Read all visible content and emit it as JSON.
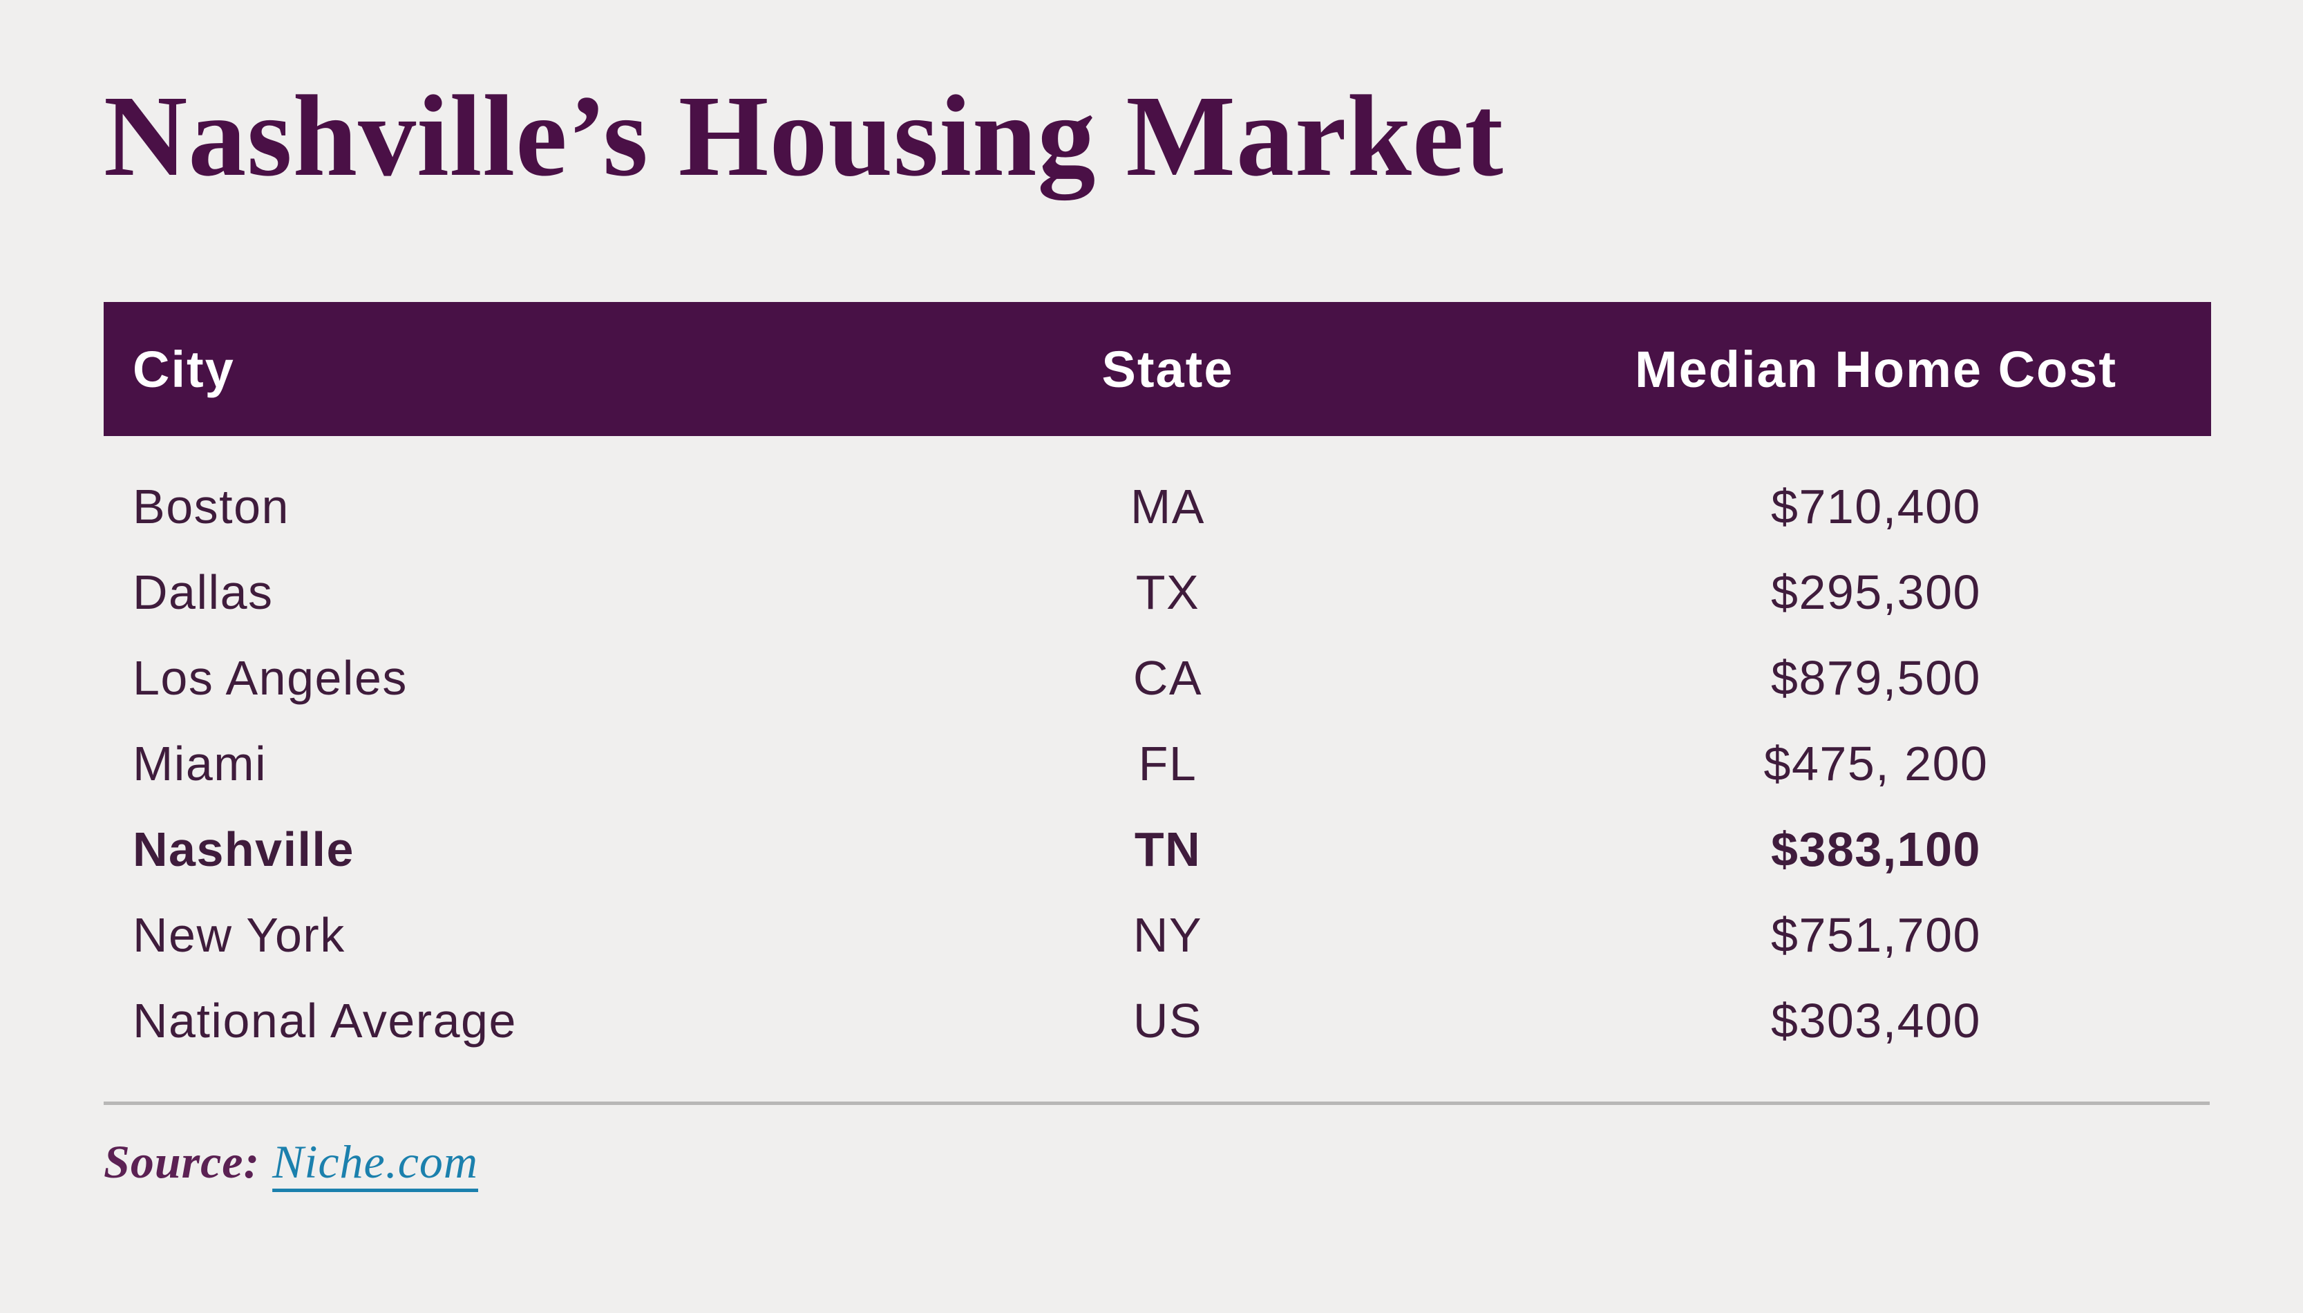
{
  "colors": {
    "background": "#f0efee",
    "header_bg": "#481146",
    "title_text": "#4a1046",
    "body_text": "#3f1c3c",
    "source_label": "#5b2153",
    "link": "#1b80ad",
    "divider": "#b8b7b6",
    "header_text": "#ffffff"
  },
  "title": "Nashville’s Housing Market",
  "table": {
    "headers": [
      "City",
      "State",
      "Median Home Cost"
    ],
    "rows": [
      {
        "city": "Boston",
        "state": "MA",
        "cost": "$710,400"
      },
      {
        "city": "Dallas",
        "state": "TX",
        "cost": "$295,300"
      },
      {
        "city": "Los Angeles",
        "state": "CA",
        "cost": "$879,500"
      },
      {
        "city": "Miami",
        "state": "FL",
        "cost": "$475, 200"
      },
      {
        "city": "Nashville",
        "state": "TN",
        "cost": "$383,100"
      },
      {
        "city": "New York",
        "state": "NY",
        "cost": "$751,700"
      },
      {
        "city": "National Average",
        "state": "US",
        "cost": "$303,400"
      }
    ]
  },
  "source": {
    "label": "Source:",
    "link_text": "Niche.com"
  },
  "chart_data": {
    "type": "table",
    "title": "Nashville’s Housing Market",
    "columns": [
      "City",
      "State",
      "Median Home Cost"
    ],
    "rows": [
      [
        "Boston",
        "MA",
        "$710,400"
      ],
      [
        "Dallas",
        "TX",
        "$295,300"
      ],
      [
        "Los Angeles",
        "CA",
        "$879,500"
      ],
      [
        "Miami",
        "FL",
        "$475, 200"
      ],
      [
        "Nashville",
        "TN",
        "$383,100"
      ],
      [
        "New York",
        "NY",
        "$751,700"
      ],
      [
        "National Average",
        "US",
        "$303,400"
      ]
    ],
    "values_usd": {
      "Boston": 710400,
      "Dallas": 295300,
      "Los Angeles": 879500,
      "Miami": 475200,
      "Nashville": 383100,
      "New York": 751700,
      "National Average": 303400
    },
    "highlighted_row": "Nashville",
    "source": "Niche.com"
  }
}
